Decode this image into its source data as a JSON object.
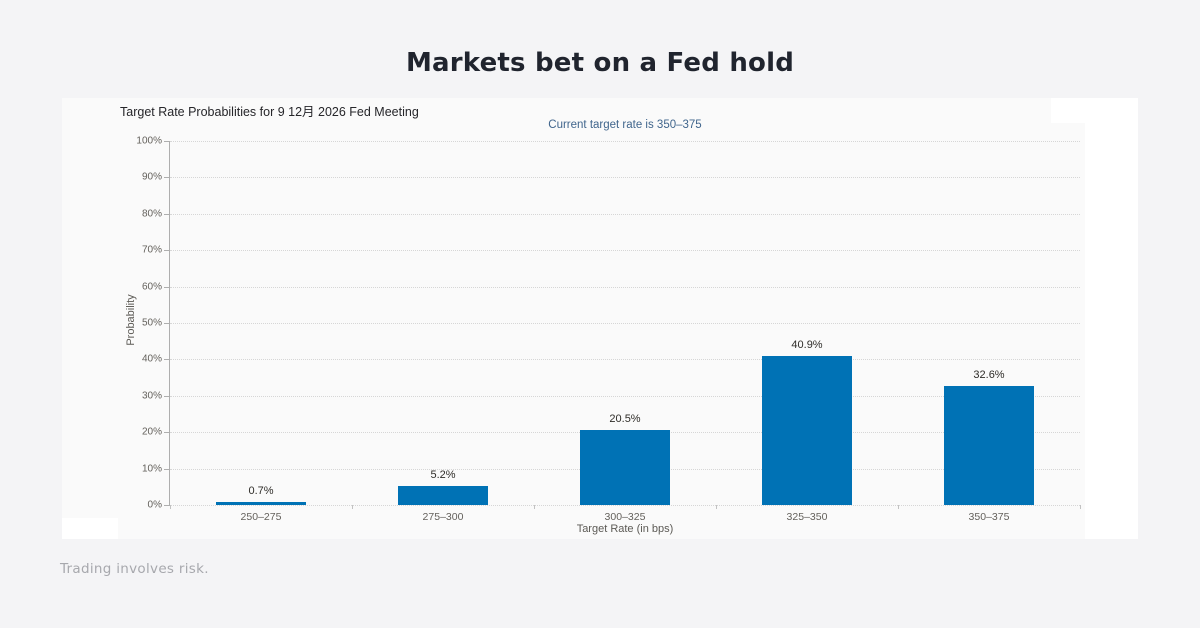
{
  "page": {
    "title": "Markets bet on a Fed hold",
    "disclaimer": "Trading involves risk."
  },
  "chart_data": {
    "type": "bar",
    "title": "Target Rate Probabilities for 9 12月 2026 Fed Meeting",
    "subtitle": "Current target rate is 350–375",
    "categories": [
      "250–275",
      "275–300",
      "300–325",
      "325–350",
      "350–375"
    ],
    "values": [
      0.7,
      5.2,
      20.5,
      40.9,
      32.6
    ],
    "value_labels": [
      "0.7%",
      "5.2%",
      "20.5%",
      "40.9%",
      "32.6%"
    ],
    "xlabel": "Target Rate (in bps)",
    "ylabel": "Probability",
    "ylim": [
      0,
      100
    ],
    "ytick_step": 10,
    "ytick_labels": [
      "0%",
      "10%",
      "20%",
      "30%",
      "40%",
      "50%",
      "60%",
      "70%",
      "80%",
      "90%",
      "100%"
    ],
    "grid": "horizontal-dotted",
    "legend": "none",
    "bar_color": "#0072b5"
  },
  "colors": {
    "background": "#f4f4f6",
    "card_background": "#fafafa",
    "bar": "#0072b5",
    "subtitle_text": "#40658c",
    "title_text": "#20242e",
    "axis_text": "#64615c",
    "disclaimer_text": "#a7a8ad"
  }
}
